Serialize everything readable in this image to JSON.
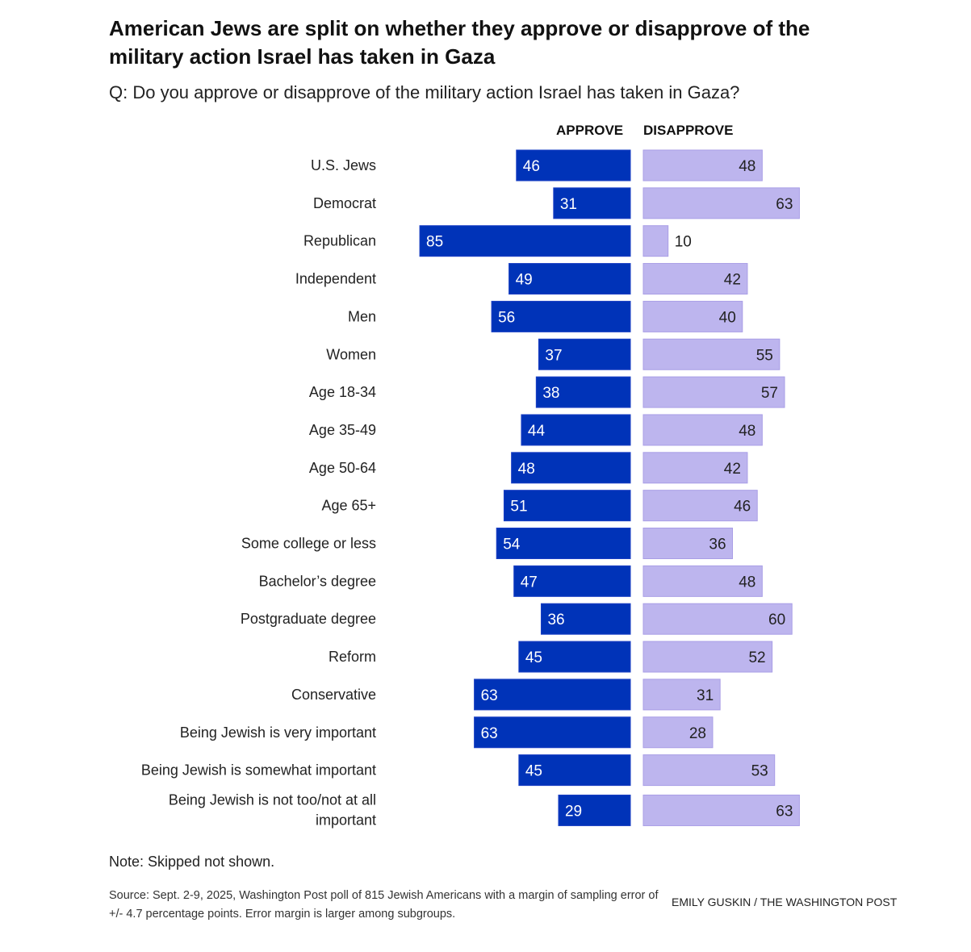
{
  "title": "American Jews are split on whether they approve or disapprove of the military action Israel has taken in Gaza",
  "subtitle": "Q: Do you approve or disapprove of the military action Israel has taken in Gaza?",
  "note": "Note: Skipped not shown.",
  "source": "Source: Sept. 2-9, 2025, Washington Post poll of 815 Jewish Americans with a margin of sampling error of +/- 4.7 percentage points. Error margin is larger among subgroups.",
  "credit": "EMILY GUSKIN / THE WASHINGTON POST",
  "colors": {
    "approve": "#0033b8",
    "disapprove": "#bdb5ee",
    "approve_text": "#ffffff",
    "disapprove_text": "#222222"
  },
  "chart_data": {
    "type": "bar",
    "orientation": "horizontal-diverging",
    "title": "American Jews are split on whether they approve or disapprove of the military action Israel has taken in Gaza",
    "subtitle": "Q: Do you approve or disapprove of the military action Israel has taken in Gaza?",
    "unit": "percent",
    "categories": [
      [
        "U.S. Jews"
      ],
      [
        "Democrat"
      ],
      [
        "Republican"
      ],
      [
        "Independent"
      ],
      [
        "Men"
      ],
      [
        "Women"
      ],
      [
        "Age 18-34"
      ],
      [
        "Age 35-49"
      ],
      [
        "Age 50-64"
      ],
      [
        "Age 65+"
      ],
      [
        "Some college or less"
      ],
      [
        "Bachelor’s degree"
      ],
      [
        "Postgraduate degree"
      ],
      [
        "Reform"
      ],
      [
        "Conservative"
      ],
      [
        "Being Jewish is very important"
      ],
      [
        "Being Jewish is somewhat important"
      ],
      [
        "Being Jewish is not too/not at all",
        "important"
      ]
    ],
    "series": [
      {
        "name": "APPROVE",
        "values": [
          46,
          31,
          85,
          49,
          56,
          37,
          38,
          44,
          48,
          51,
          54,
          47,
          36,
          45,
          63,
          63,
          45,
          29
        ]
      },
      {
        "name": "DISAPPROVE",
        "values": [
          48,
          63,
          10,
          42,
          40,
          55,
          57,
          48,
          42,
          46,
          36,
          48,
          60,
          52,
          31,
          28,
          53,
          63
        ]
      }
    ],
    "xlim": [
      0,
      100
    ],
    "grid": false,
    "legend": "column headers at top"
  }
}
